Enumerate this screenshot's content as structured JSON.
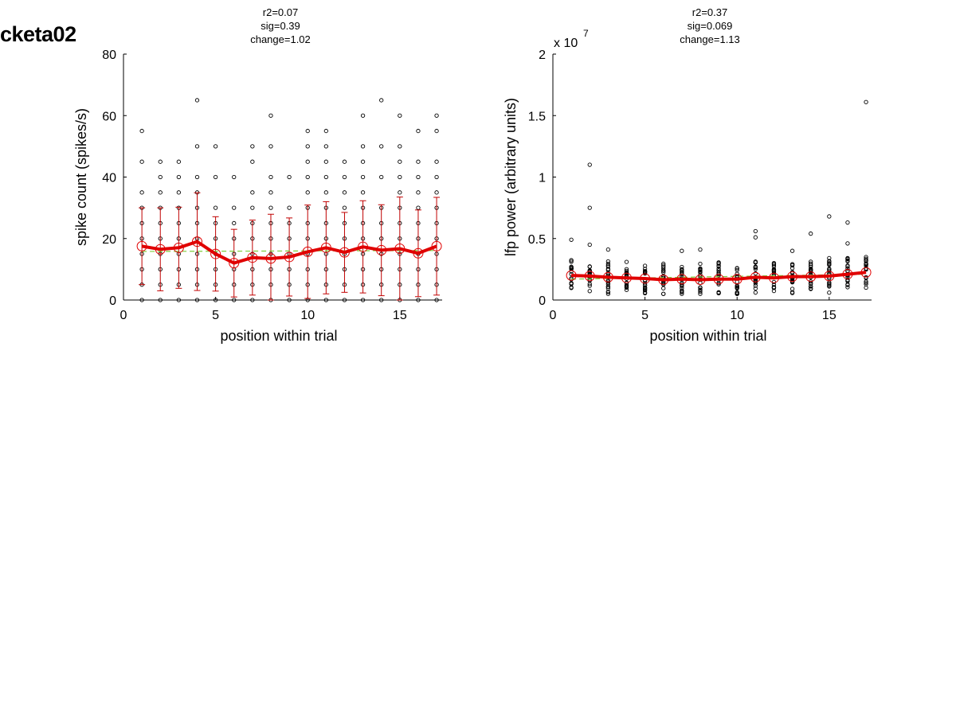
{
  "page_title": "cketa02",
  "colors": {
    "points": "#000000",
    "mean_line": "#e00000",
    "error_bars": "#c00000",
    "fit_line": "#7ccd3c",
    "background": "#ffffff"
  },
  "chart_data": [
    {
      "type": "scatter",
      "stats": [
        "r2=0.07",
        "sig=0.39",
        "change=1.02"
      ],
      "xlabel": "position within trial",
      "ylabel": "spike count (spikes/s)",
      "xlim": [
        0,
        17.3
      ],
      "ylim": [
        0,
        80
      ],
      "xticks": [
        0,
        5,
        10,
        15
      ],
      "yticks": [
        0,
        20,
        40,
        60,
        80
      ],
      "ytick_labels": [
        "0",
        "20",
        "40",
        "60",
        "80"
      ],
      "exponent_label": "",
      "grid": false,
      "points": [
        [
          1,
          0
        ],
        [
          1,
          5
        ],
        [
          1,
          10
        ],
        [
          1,
          15
        ],
        [
          1,
          20
        ],
        [
          1,
          25
        ],
        [
          1,
          30
        ],
        [
          1,
          35
        ],
        [
          1,
          45
        ],
        [
          1,
          55
        ],
        [
          2,
          0
        ],
        [
          2,
          5
        ],
        [
          2,
          10
        ],
        [
          2,
          15
        ],
        [
          2,
          20
        ],
        [
          2,
          25
        ],
        [
          2,
          30
        ],
        [
          2,
          35
        ],
        [
          2,
          40
        ],
        [
          2,
          45
        ],
        [
          3,
          0
        ],
        [
          3,
          5
        ],
        [
          3,
          10
        ],
        [
          3,
          15
        ],
        [
          3,
          20
        ],
        [
          3,
          25
        ],
        [
          3,
          30
        ],
        [
          3,
          35
        ],
        [
          3,
          40
        ],
        [
          3,
          45
        ],
        [
          4,
          0
        ],
        [
          4,
          5
        ],
        [
          4,
          10
        ],
        [
          4,
          15
        ],
        [
          4,
          20
        ],
        [
          4,
          25
        ],
        [
          4,
          30
        ],
        [
          4,
          35
        ],
        [
          4,
          40
        ],
        [
          4,
          50
        ],
        [
          4,
          65
        ],
        [
          5,
          0
        ],
        [
          5,
          5
        ],
        [
          5,
          10
        ],
        [
          5,
          15
        ],
        [
          5,
          20
        ],
        [
          5,
          25
        ],
        [
          5,
          30
        ],
        [
          5,
          40
        ],
        [
          5,
          50
        ],
        [
          6,
          0
        ],
        [
          6,
          5
        ],
        [
          6,
          10
        ],
        [
          6,
          15
        ],
        [
          6,
          20
        ],
        [
          6,
          25
        ],
        [
          6,
          30
        ],
        [
          6,
          40
        ],
        [
          7,
          0
        ],
        [
          7,
          5
        ],
        [
          7,
          10
        ],
        [
          7,
          15
        ],
        [
          7,
          20
        ],
        [
          7,
          25
        ],
        [
          7,
          30
        ],
        [
          7,
          35
        ],
        [
          7,
          45
        ],
        [
          7,
          50
        ],
        [
          8,
          0
        ],
        [
          8,
          5
        ],
        [
          8,
          10
        ],
        [
          8,
          15
        ],
        [
          8,
          20
        ],
        [
          8,
          25
        ],
        [
          8,
          30
        ],
        [
          8,
          35
        ],
        [
          8,
          40
        ],
        [
          8,
          50
        ],
        [
          8,
          60
        ],
        [
          9,
          0
        ],
        [
          9,
          5
        ],
        [
          9,
          10
        ],
        [
          9,
          15
        ],
        [
          9,
          20
        ],
        [
          9,
          25
        ],
        [
          9,
          30
        ],
        [
          9,
          40
        ],
        [
          10,
          0
        ],
        [
          10,
          5
        ],
        [
          10,
          10
        ],
        [
          10,
          15
        ],
        [
          10,
          20
        ],
        [
          10,
          25
        ],
        [
          10,
          30
        ],
        [
          10,
          35
        ],
        [
          10,
          40
        ],
        [
          10,
          45
        ],
        [
          10,
          50
        ],
        [
          10,
          55
        ],
        [
          11,
          0
        ],
        [
          11,
          5
        ],
        [
          11,
          10
        ],
        [
          11,
          15
        ],
        [
          11,
          20
        ],
        [
          11,
          25
        ],
        [
          11,
          30
        ],
        [
          11,
          35
        ],
        [
          11,
          40
        ],
        [
          11,
          45
        ],
        [
          11,
          50
        ],
        [
          11,
          55
        ],
        [
          12,
          0
        ],
        [
          12,
          5
        ],
        [
          12,
          10
        ],
        [
          12,
          15
        ],
        [
          12,
          20
        ],
        [
          12,
          25
        ],
        [
          12,
          30
        ],
        [
          12,
          35
        ],
        [
          12,
          40
        ],
        [
          12,
          45
        ],
        [
          13,
          0
        ],
        [
          13,
          5
        ],
        [
          13,
          10
        ],
        [
          13,
          15
        ],
        [
          13,
          20
        ],
        [
          13,
          25
        ],
        [
          13,
          30
        ],
        [
          13,
          35
        ],
        [
          13,
          40
        ],
        [
          13,
          45
        ],
        [
          13,
          50
        ],
        [
          13,
          60
        ],
        [
          14,
          0
        ],
        [
          14,
          5
        ],
        [
          14,
          10
        ],
        [
          14,
          15
        ],
        [
          14,
          20
        ],
        [
          14,
          25
        ],
        [
          14,
          30
        ],
        [
          14,
          40
        ],
        [
          14,
          50
        ],
        [
          14,
          65
        ],
        [
          15,
          0
        ],
        [
          15,
          5
        ],
        [
          15,
          10
        ],
        [
          15,
          15
        ],
        [
          15,
          20
        ],
        [
          15,
          25
        ],
        [
          15,
          30
        ],
        [
          15,
          35
        ],
        [
          15,
          40
        ],
        [
          15,
          45
        ],
        [
          15,
          50
        ],
        [
          15,
          60
        ],
        [
          16,
          0
        ],
        [
          16,
          5
        ],
        [
          16,
          10
        ],
        [
          16,
          15
        ],
        [
          16,
          20
        ],
        [
          16,
          25
        ],
        [
          16,
          30
        ],
        [
          16,
          35
        ],
        [
          16,
          40
        ],
        [
          16,
          45
        ],
        [
          16,
          55
        ],
        [
          17,
          0
        ],
        [
          17,
          5
        ],
        [
          17,
          10
        ],
        [
          17,
          15
        ],
        [
          17,
          20
        ],
        [
          17,
          25
        ],
        [
          17,
          30
        ],
        [
          17,
          35
        ],
        [
          17,
          40
        ],
        [
          17,
          45
        ],
        [
          17,
          55
        ],
        [
          17,
          60
        ]
      ],
      "mean": {
        "x": [
          1,
          2,
          3,
          4,
          5,
          6,
          7,
          8,
          9,
          10,
          11,
          12,
          13,
          14,
          15,
          16,
          17
        ],
        "y": [
          17.5,
          16.5,
          17,
          19,
          15,
          12,
          13.8,
          13.5,
          14,
          15.7,
          17,
          15.5,
          17.3,
          16.2,
          16.7,
          15.2,
          17.5
        ],
        "err": [
          12.5,
          13.5,
          13.2,
          15.9,
          12.1,
          11,
          12.2,
          14.4,
          12.7,
          15.2,
          15,
          13,
          15,
          14.8,
          16.8,
          14.1,
          15.9
        ]
      },
      "fit": {
        "x": [
          1,
          17
        ],
        "y": [
          15.8,
          16.1
        ]
      }
    },
    {
      "type": "scatter",
      "stats": [
        "r2=0.37",
        "sig=0.069",
        "change=1.13"
      ],
      "xlabel": "position within trial",
      "ylabel": "lfp power (arbitrary units)",
      "xlim": [
        0,
        17.3
      ],
      "ylim": [
        0,
        20000000
      ],
      "xticks": [
        0,
        5,
        10,
        15
      ],
      "yticks": [
        0,
        5000000,
        10000000,
        15000000,
        20000000
      ],
      "ytick_labels": [
        "0",
        "0.5",
        "1",
        "1.5",
        "2"
      ],
      "exponent_label": "x 10",
      "exponent_power": "7",
      "grid": false,
      "point_scale": 10000000,
      "outliers": [
        [
          1,
          0.49
        ],
        [
          2,
          1.1
        ],
        [
          2,
          0.75
        ],
        [
          2,
          0.45
        ],
        [
          3,
          0.41
        ],
        [
          7,
          0.4
        ],
        [
          8,
          0.41
        ],
        [
          11,
          0.56
        ],
        [
          11,
          0.51
        ],
        [
          13,
          0.4
        ],
        [
          14,
          0.54
        ],
        [
          15,
          0.68
        ],
        [
          16,
          0.63
        ],
        [
          16,
          0.46
        ],
        [
          17,
          1.61
        ]
      ],
      "mean": {
        "x": [
          1,
          2,
          3,
          4,
          5,
          6,
          7,
          8,
          9,
          10,
          11,
          12,
          13,
          14,
          15,
          16,
          17
        ],
        "y": [
          2000000,
          1950000,
          1850000,
          1800000,
          1750000,
          1650000,
          1700000,
          1650000,
          1700000,
          1700000,
          1850000,
          1800000,
          1900000,
          1900000,
          1950000,
          2100000,
          2250000
        ]
      },
      "fit": {
        "x": [
          1,
          17
        ],
        "y": [
          1700000,
          2100000
        ]
      }
    }
  ]
}
